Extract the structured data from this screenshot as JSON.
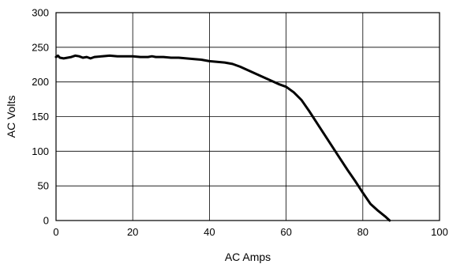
{
  "chart_data": {
    "type": "line",
    "xlabel": "AC Amps",
    "ylabel": "AC Volts",
    "xlim": [
      0,
      100
    ],
    "ylim": [
      0,
      300
    ],
    "xticks": [
      0,
      20,
      40,
      60,
      80,
      100
    ],
    "yticks": [
      0,
      50,
      100,
      150,
      200,
      250,
      300
    ],
    "grid": true,
    "line_color": "#000000",
    "series": [
      {
        "x": [
          0,
          0.5,
          1,
          2,
          3,
          4,
          5,
          6,
          7,
          8,
          9,
          10,
          12,
          14,
          16,
          18,
          20,
          22,
          24,
          25,
          26,
          28,
          30,
          32,
          34,
          36,
          38,
          40,
          42,
          44,
          45,
          46,
          48,
          50,
          52,
          54,
          56,
          58,
          60,
          62,
          64,
          66,
          68,
          70,
          72,
          74,
          76,
          78,
          80,
          82,
          84,
          86,
          87
        ],
        "y": [
          236,
          238,
          235,
          234,
          235,
          236,
          238,
          237,
          235,
          236,
          234,
          236,
          237,
          238,
          237,
          237,
          237,
          236,
          236,
          237,
          236,
          236,
          235,
          235,
          234,
          233,
          232,
          230,
          229,
          228,
          227,
          226,
          222,
          217,
          212,
          207,
          202,
          197,
          193,
          185,
          174,
          158,
          141,
          124,
          107,
          90,
          73,
          57,
          40,
          24,
          14,
          5,
          0
        ]
      }
    ]
  }
}
